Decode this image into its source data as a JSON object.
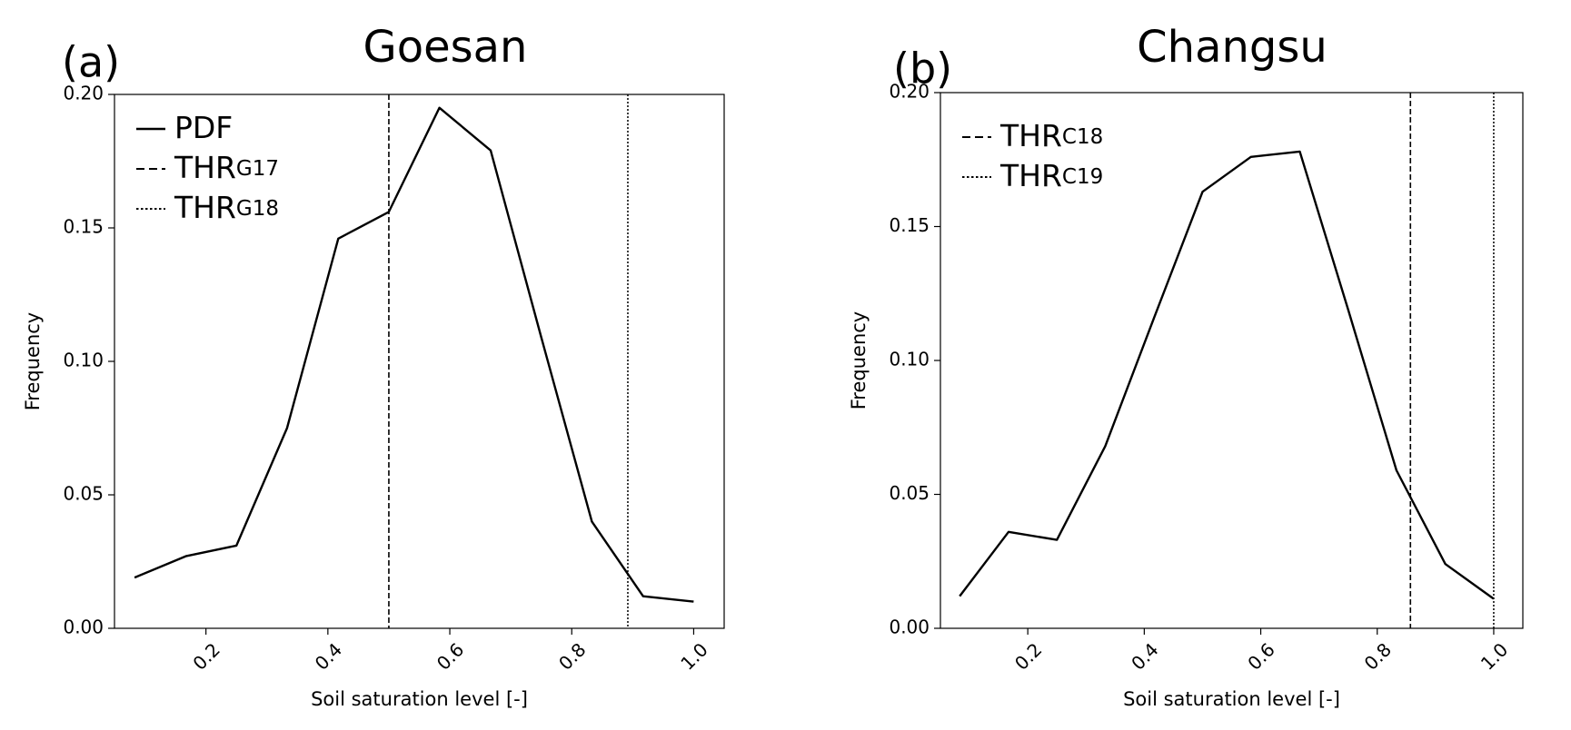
{
  "chart_data": [
    {
      "type": "line",
      "panel_label": "(a)",
      "title": "Goesan",
      "xlabel": "Soil saturation level [-]",
      "ylabel": "Frequency",
      "xlim": [
        0.05,
        1.05
      ],
      "ylim": [
        0.0,
        0.2
      ],
      "xticks": [
        "0.2",
        "0.4",
        "0.6",
        "0.8",
        "1.0"
      ],
      "yticks": [
        "0.00",
        "0.05",
        "0.10",
        "0.15",
        "0.20"
      ],
      "legend_placement": "upper-left",
      "series": [
        {
          "name": "PDF",
          "x": [
            0.083,
            0.167,
            0.25,
            0.333,
            0.417,
            0.5,
            0.583,
            0.667,
            0.75,
            0.833,
            0.917,
            1.0
          ],
          "y": [
            0.019,
            0.027,
            0.031,
            0.075,
            0.146,
            0.156,
            0.195,
            0.179,
            0.109,
            0.04,
            0.012,
            0.01
          ]
        }
      ],
      "thresholds": [
        {
          "name": "THR",
          "sub": "G17",
          "x": 0.5,
          "style": "dashed"
        },
        {
          "name": "THR",
          "sub": "G18",
          "x": 0.892,
          "style": "dotted"
        }
      ]
    },
    {
      "type": "line",
      "panel_label": "(b)",
      "title": "Changsu",
      "xlabel": "Soil saturation level [-]",
      "ylabel": "Frequency",
      "xlim": [
        0.05,
        1.05
      ],
      "ylim": [
        0.0,
        0.2
      ],
      "xticks": [
        "0.2",
        "0.4",
        "0.6",
        "0.8",
        "1.0"
      ],
      "yticks": [
        "0.00",
        "0.05",
        "0.10",
        "0.15",
        "0.20"
      ],
      "legend_placement": "upper-left",
      "series": [
        {
          "name": "",
          "x": [
            0.083,
            0.167,
            0.25,
            0.333,
            0.417,
            0.5,
            0.583,
            0.667,
            0.75,
            0.833,
            0.917,
            1.0
          ],
          "y": [
            0.012,
            0.036,
            0.033,
            0.068,
            0.116,
            0.163,
            0.176,
            0.178,
            0.119,
            0.059,
            0.024,
            0.011
          ]
        }
      ],
      "thresholds": [
        {
          "name": "THR",
          "sub": "C18",
          "x": 0.857,
          "style": "dashed"
        },
        {
          "name": "THR",
          "sub": "C19",
          "x": 1.0,
          "style": "dotted"
        }
      ]
    }
  ]
}
